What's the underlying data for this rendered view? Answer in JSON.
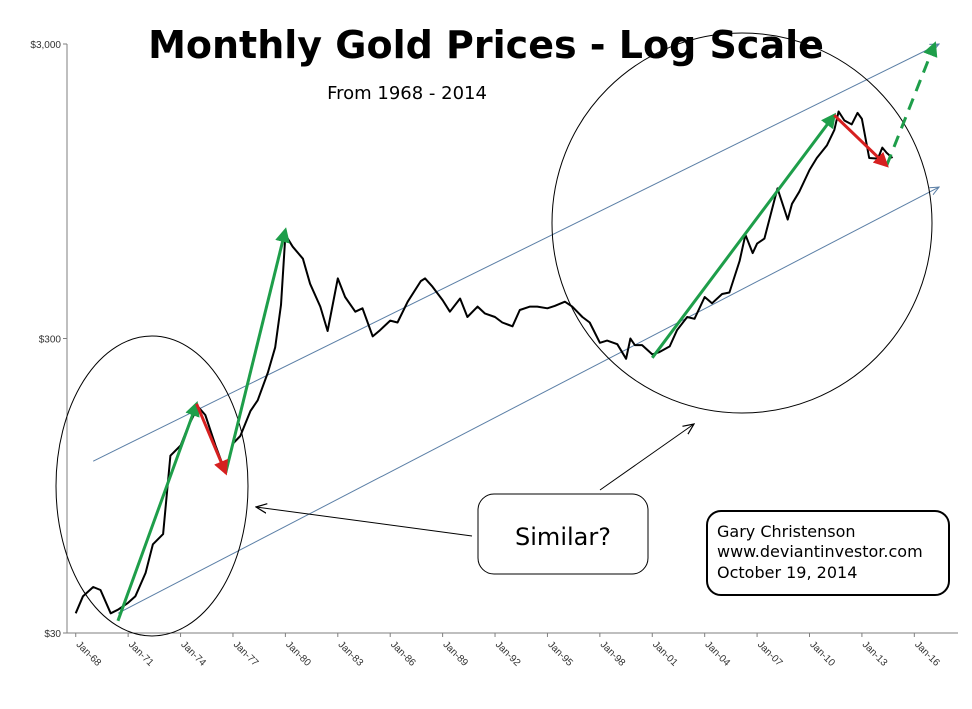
{
  "chart_data": {
    "type": "line",
    "title": "Monthly Gold Prices - Log Scale",
    "subtitle": "From 1968 - 2014",
    "xlabel": "",
    "ylabel": "",
    "y_scale": "log",
    "ylim": [
      30,
      3000
    ],
    "y_ticks": [
      "$30",
      "$300",
      "$3,000"
    ],
    "x_ticks": [
      "Jan-68",
      "Jan-71",
      "Jan-74",
      "Jan-77",
      "Jan-80",
      "Jan-83",
      "Jan-86",
      "Jan-89",
      "Jan-92",
      "Jan-95",
      "Jan-98",
      "Jan-01",
      "Jan-04",
      "Jan-07",
      "Jan-10",
      "Jan-13",
      "Jan-16"
    ],
    "series": [
      {
        "color": "#000000",
        "points": [
          [
            "1968-01",
            35
          ],
          [
            "1968-06",
            40
          ],
          [
            "1969-01",
            43
          ],
          [
            "1969-06",
            42
          ],
          [
            "1970-01",
            35
          ],
          [
            "1970-06",
            36
          ],
          [
            "1971-01",
            38
          ],
          [
            "1971-06",
            40
          ],
          [
            "1972-01",
            48
          ],
          [
            "1972-06",
            60
          ],
          [
            "1973-01",
            65
          ],
          [
            "1973-06",
            120
          ],
          [
            "1974-01",
            130
          ],
          [
            "1974-06",
            150
          ],
          [
            "1975-01",
            176
          ],
          [
            "1975-06",
            165
          ],
          [
            "1976-01",
            130
          ],
          [
            "1976-08",
            105
          ],
          [
            "1977-01",
            132
          ],
          [
            "1977-06",
            140
          ],
          [
            "1978-01",
            170
          ],
          [
            "1978-06",
            185
          ],
          [
            "1979-01",
            230
          ],
          [
            "1979-06",
            280
          ],
          [
            "1979-10",
            390
          ],
          [
            "1980-01",
            675
          ],
          [
            "1980-06",
            615
          ],
          [
            "1981-01",
            560
          ],
          [
            "1981-06",
            460
          ],
          [
            "1982-01",
            385
          ],
          [
            "1982-06",
            318
          ],
          [
            "1983-01",
            480
          ],
          [
            "1983-06",
            415
          ],
          [
            "1984-01",
            370
          ],
          [
            "1984-06",
            380
          ],
          [
            "1985-01",
            305
          ],
          [
            "1985-06",
            320
          ],
          [
            "1986-01",
            345
          ],
          [
            "1986-06",
            340
          ],
          [
            "1987-01",
            400
          ],
          [
            "1987-10",
            470
          ],
          [
            "1988-01",
            480
          ],
          [
            "1988-06",
            450
          ],
          [
            "1989-01",
            405
          ],
          [
            "1989-06",
            370
          ],
          [
            "1990-01",
            410
          ],
          [
            "1990-06",
            355
          ],
          [
            "1991-01",
            385
          ],
          [
            "1991-06",
            365
          ],
          [
            "1992-01",
            355
          ],
          [
            "1992-06",
            340
          ],
          [
            "1993-01",
            330
          ],
          [
            "1993-06",
            375
          ],
          [
            "1994-01",
            385
          ],
          [
            "1994-06",
            385
          ],
          [
            "1995-01",
            380
          ],
          [
            "1995-06",
            387
          ],
          [
            "1996-01",
            400
          ],
          [
            "1996-06",
            385
          ],
          [
            "1997-01",
            355
          ],
          [
            "1997-06",
            340
          ],
          [
            "1998-01",
            290
          ],
          [
            "1998-06",
            295
          ],
          [
            "1999-01",
            287
          ],
          [
            "1999-07",
            256
          ],
          [
            "1999-10",
            300
          ],
          [
            "2000-01",
            285
          ],
          [
            "2000-06",
            285
          ],
          [
            "2001-01",
            265
          ],
          [
            "2001-06",
            270
          ],
          [
            "2002-01",
            282
          ],
          [
            "2002-06",
            320
          ],
          [
            "2003-01",
            355
          ],
          [
            "2003-06",
            350
          ],
          [
            "2004-01",
            415
          ],
          [
            "2004-06",
            395
          ],
          [
            "2005-01",
            425
          ],
          [
            "2005-06",
            430
          ],
          [
            "2006-01",
            550
          ],
          [
            "2006-05",
            675
          ],
          [
            "2006-10",
            585
          ],
          [
            "2007-01",
            630
          ],
          [
            "2007-06",
            655
          ],
          [
            "2008-01",
            890
          ],
          [
            "2008-03",
            970
          ],
          [
            "2008-10",
            760
          ],
          [
            "2009-01",
            860
          ],
          [
            "2009-06",
            945
          ],
          [
            "2010-01",
            1120
          ],
          [
            "2010-06",
            1230
          ],
          [
            "2011-01",
            1360
          ],
          [
            "2011-06",
            1530
          ],
          [
            "2011-09",
            1770
          ],
          [
            "2012-01",
            1650
          ],
          [
            "2012-06",
            1600
          ],
          [
            "2012-10",
            1750
          ],
          [
            "2013-01",
            1670
          ],
          [
            "2013-06",
            1230
          ],
          [
            "2013-12",
            1225
          ],
          [
            "2014-03",
            1335
          ],
          [
            "2014-06",
            1280
          ],
          [
            "2014-10",
            1230
          ]
        ]
      }
    ],
    "trend_channel": [
      {
        "color": "#5b7fa6",
        "from": [
          "1969-01",
          115
        ],
        "to": [
          "2017-06",
          3000
        ]
      },
      {
        "color": "#5b7fa6",
        "from": [
          "1970-06",
          35
        ],
        "to": [
          "2017-06",
          980
        ]
      }
    ],
    "annotations": {
      "green_arrows": [
        {
          "from": [
            "1970-06",
            33
          ],
          "to": [
            "1974-12",
            180
          ]
        },
        {
          "from": [
            "1976-08",
            105
          ],
          "to": [
            "1980-01",
            700
          ]
        },
        {
          "from": [
            "2001-01",
            258
          ],
          "to": [
            "2011-06",
            1720
          ]
        },
        {
          "from": [
            "2014-06",
            1160
          ],
          "to": [
            "2017-03",
            3000
          ],
          "dashed": true
        }
      ],
      "red_arrows": [
        {
          "from": [
            "1974-12",
            180
          ],
          "to": [
            "1976-08",
            105
          ]
        },
        {
          "from": [
            "2011-06",
            1720
          ],
          "to": [
            "2014-06",
            1160
          ]
        }
      ],
      "callout_text": "Similar?",
      "credit": {
        "line1": "Gary Christenson",
        "line2": "www.deviantinvestor.com",
        "line3": "October 19, 2014"
      }
    }
  }
}
